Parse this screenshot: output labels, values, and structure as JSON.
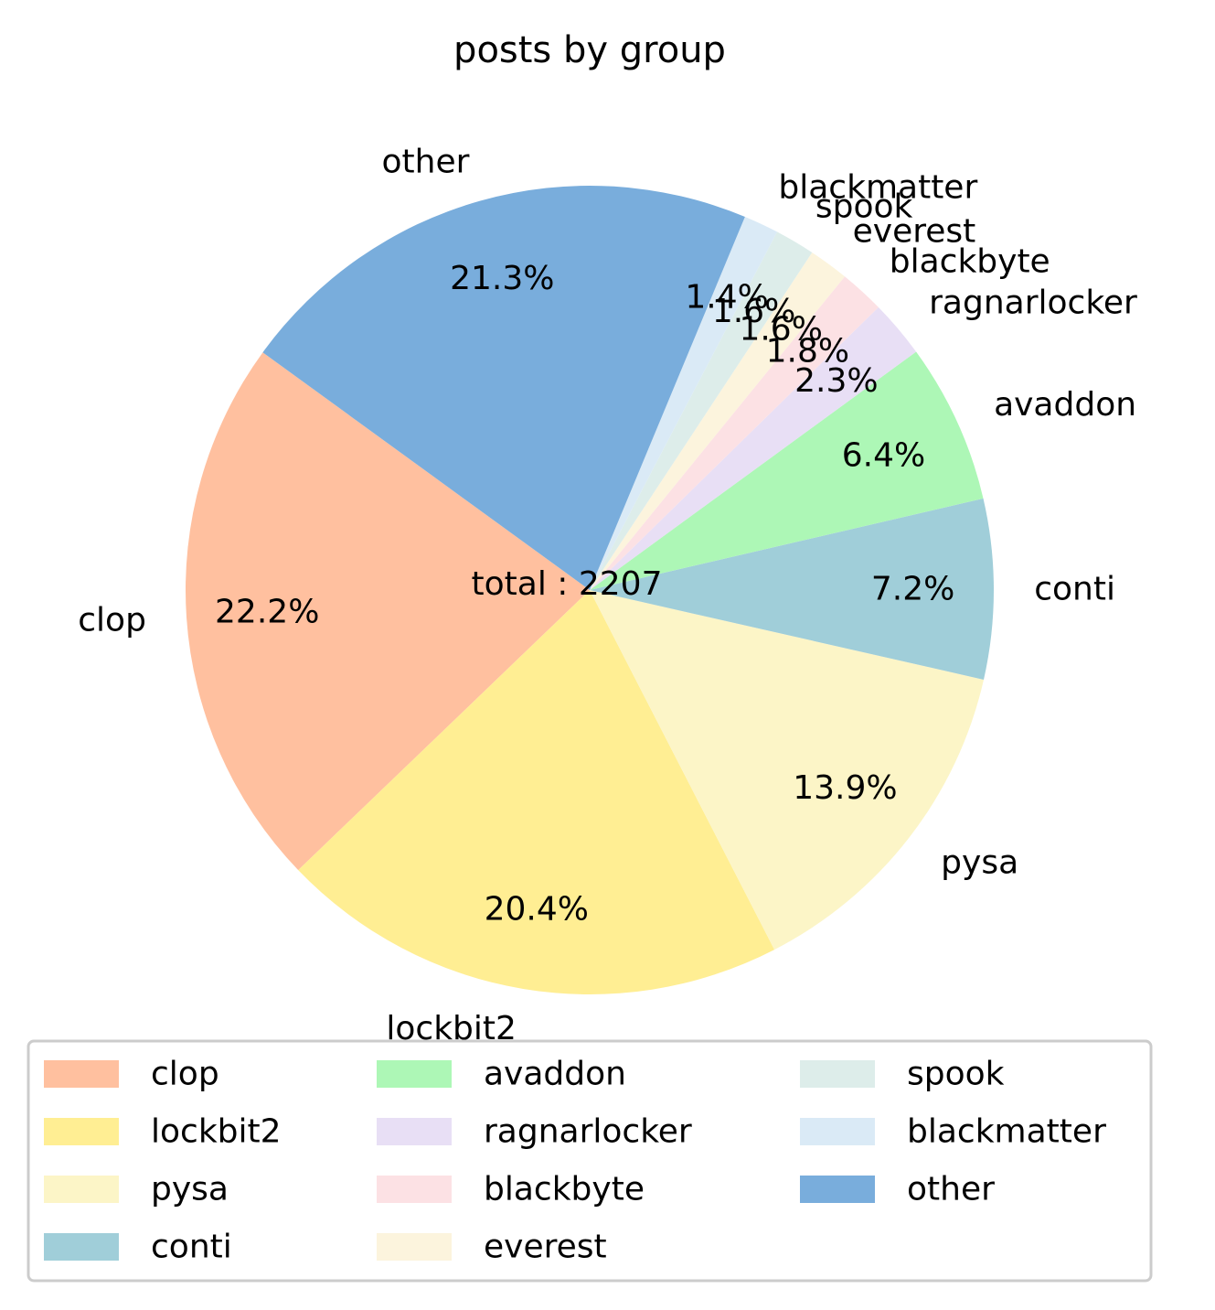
{
  "chart_data": {
    "type": "pie",
    "title": "posts by group",
    "center_text": "total : 2207",
    "start_angle_deg": 144,
    "direction": "counterclockwise",
    "legend_placement": "bottom",
    "legend_columns": 3,
    "slices": [
      {
        "label": "clop",
        "percent": 22.2,
        "pct_text": "22.2%",
        "color": "#FFC09F"
      },
      {
        "label": "lockbit2",
        "percent": 20.4,
        "pct_text": "20.4%",
        "color": "#FFEE93"
      },
      {
        "label": "pysa",
        "percent": 13.9,
        "pct_text": "13.9%",
        "color": "#FCF5C7"
      },
      {
        "label": "conti",
        "percent": 7.2,
        "pct_text": "7.2%",
        "color": "#A0CED9"
      },
      {
        "label": "avaddon",
        "percent": 6.4,
        "pct_text": "6.4%",
        "color": "#ADF7B6"
      },
      {
        "label": "ragnarlocker",
        "percent": 2.3,
        "pct_text": "2.3%",
        "color": "#E8DFF5"
      },
      {
        "label": "blackbyte",
        "percent": 1.8,
        "pct_text": "1.8%",
        "color": "#FCE1E4"
      },
      {
        "label": "everest",
        "percent": 1.6,
        "pct_text": "1.6%",
        "color": "#FCF4DD"
      },
      {
        "label": "spook",
        "percent": 1.6,
        "pct_text": "1.6%",
        "color": "#DDEDEA"
      },
      {
        "label": "blackmatter",
        "percent": 1.4,
        "pct_text": "1.4%",
        "color": "#DAEAF6"
      },
      {
        "label": "other",
        "percent": 21.3,
        "pct_text": "21.3%",
        "color": "#79ADDC"
      }
    ]
  }
}
